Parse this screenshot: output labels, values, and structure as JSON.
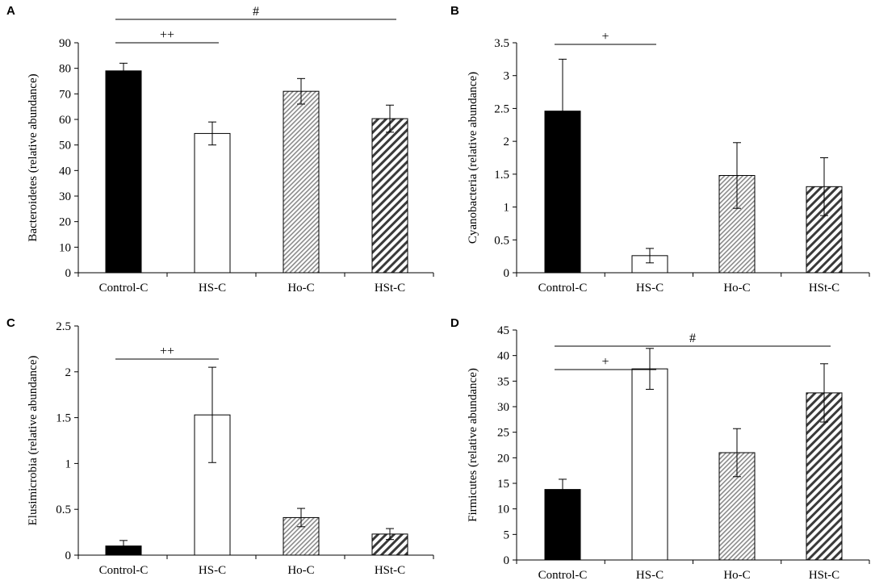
{
  "chart_data": [
    {
      "panel": "A",
      "type": "bar",
      "categories": [
        "Control-C",
        "HS-C",
        "Ho-C",
        "HSt-C"
      ],
      "values": [
        79,
        54.5,
        71,
        60.3
      ],
      "errors": [
        3,
        4.5,
        5,
        5.3
      ],
      "ylabel": "Bacteroidetes (relative abundance)",
      "xlabel": "",
      "ylim": [
        0,
        90
      ],
      "yticks": [
        0,
        10,
        20,
        30,
        40,
        50,
        60,
        70,
        80,
        90
      ],
      "fills": [
        "solid",
        "white",
        "fine-hatch",
        "coarse-hatch"
      ],
      "significance": [
        {
          "from": 0,
          "to": 3,
          "label": "#"
        },
        {
          "from": 0,
          "to": 1,
          "label": "++"
        }
      ]
    },
    {
      "panel": "B",
      "type": "bar",
      "categories": [
        "Control-C",
        "HS-C",
        "Ho-C",
        "HSt-C"
      ],
      "values": [
        2.46,
        0.26,
        1.48,
        1.31
      ],
      "errors": [
        0.79,
        0.11,
        0.5,
        0.44
      ],
      "ylabel": "Cyanobacteria (relative abundance)",
      "xlabel": "",
      "ylim": [
        0,
        3.5
      ],
      "yticks": [
        0,
        0.5,
        1,
        1.5,
        2,
        2.5,
        3,
        3.5
      ],
      "fills": [
        "solid",
        "white",
        "fine-hatch",
        "coarse-hatch"
      ],
      "significance": [
        {
          "from": 0,
          "to": 1,
          "label": "+"
        }
      ]
    },
    {
      "panel": "C",
      "type": "bar",
      "categories": [
        "Control-C",
        "HS-C",
        "Ho-C",
        "HSt-C"
      ],
      "values": [
        0.1,
        1.53,
        0.41,
        0.23
      ],
      "errors": [
        0.06,
        0.52,
        0.1,
        0.06
      ],
      "ylabel": "Elusimicrobia (relative abundance)",
      "xlabel": "",
      "ylim": [
        0,
        2.5
      ],
      "yticks": [
        0,
        0.5,
        1,
        1.5,
        2,
        2.5
      ],
      "fills": [
        "solid",
        "white",
        "fine-hatch",
        "coarse-hatch"
      ],
      "significance": [
        {
          "from": 0,
          "to": 1,
          "label": "++"
        }
      ]
    },
    {
      "panel": "D",
      "type": "bar",
      "categories": [
        "Control-C",
        "HS-C",
        "Ho-C",
        "HSt-C"
      ],
      "values": [
        13.8,
        37.4,
        21,
        32.7
      ],
      "errors": [
        2,
        4,
        4.7,
        5.7
      ],
      "ylabel": "Firmicutes (relative abundance)",
      "xlabel": "",
      "ylim": [
        0,
        45
      ],
      "yticks": [
        0,
        5,
        10,
        15,
        20,
        25,
        30,
        35,
        40,
        45
      ],
      "fills": [
        "solid",
        "white",
        "fine-hatch",
        "coarse-hatch"
      ],
      "significance": [
        {
          "from": 0,
          "to": 3,
          "label": "#"
        },
        {
          "from": 0,
          "to": 1,
          "label": "+"
        }
      ]
    }
  ]
}
